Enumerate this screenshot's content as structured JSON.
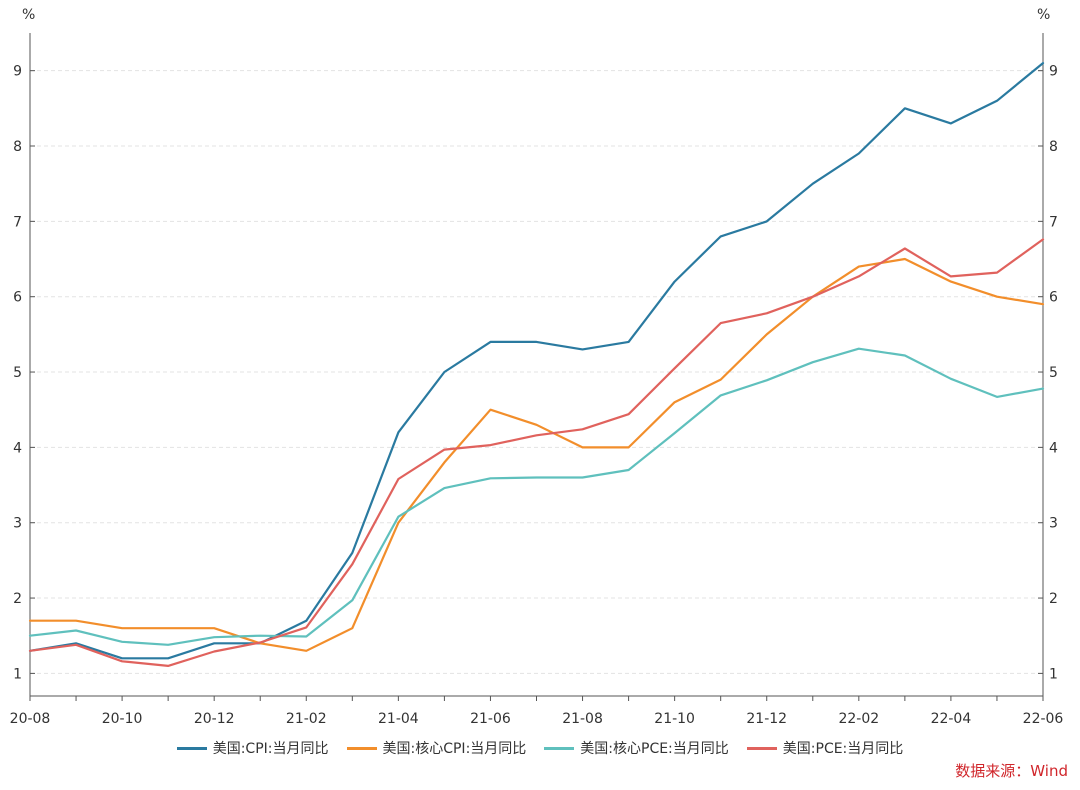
{
  "chart_data": {
    "type": "line",
    "y_unit_left": "%",
    "y_unit_right": "%",
    "x": [
      "20-08",
      "20-09",
      "20-10",
      "20-11",
      "20-12",
      "21-01",
      "21-02",
      "21-03",
      "21-04",
      "21-05",
      "21-06",
      "21-07",
      "21-08",
      "21-09",
      "21-10",
      "21-11",
      "21-12",
      "22-01",
      "22-02",
      "22-03",
      "22-04",
      "22-05",
      "22-06"
    ],
    "x_tick_labels": [
      "20-08",
      "20-10",
      "20-12",
      "21-02",
      "21-04",
      "21-06",
      "21-08",
      "21-10",
      "21-12",
      "22-02",
      "22-04",
      "22-06"
    ],
    "y_ticks": [
      1,
      2,
      3,
      4,
      5,
      6,
      7,
      8,
      9
    ],
    "ylim": [
      0.7,
      9.5
    ],
    "grid": true,
    "legend_position": "bottom",
    "series": [
      {
        "name": "美国:CPI:当月同比",
        "color": "#2a7aa0",
        "values": [
          1.3,
          1.4,
          1.2,
          1.2,
          1.4,
          1.4,
          1.7,
          2.6,
          4.2,
          5.0,
          5.4,
          5.4,
          5.3,
          5.4,
          6.2,
          6.8,
          7.0,
          7.5,
          7.9,
          8.5,
          8.3,
          8.6,
          9.1
        ]
      },
      {
        "name": "美国:核心CPI:当月同比",
        "color": "#f28e2b",
        "values": [
          1.7,
          1.7,
          1.6,
          1.6,
          1.6,
          1.4,
          1.3,
          1.6,
          3.0,
          3.8,
          4.5,
          4.3,
          4.0,
          4.0,
          4.6,
          4.9,
          5.5,
          6.0,
          6.4,
          6.5,
          6.2,
          6.0,
          5.9
        ]
      },
      {
        "name": "美国:核心PCE:当月同比",
        "color": "#5fc0bd",
        "values": [
          1.5,
          1.57,
          1.42,
          1.38,
          1.48,
          1.5,
          1.49,
          1.97,
          3.08,
          3.46,
          3.59,
          3.6,
          3.6,
          3.7,
          4.19,
          4.69,
          4.89,
          5.13,
          5.31,
          5.22,
          4.91,
          4.67,
          4.78
        ]
      },
      {
        "name": "美国:PCE:当月同比",
        "color": "#e0625d",
        "values": [
          1.3,
          1.38,
          1.16,
          1.1,
          1.29,
          1.41,
          1.61,
          2.45,
          3.58,
          3.97,
          4.03,
          4.16,
          4.24,
          4.44,
          5.05,
          5.65,
          5.78,
          6.0,
          6.27,
          6.64,
          6.27,
          6.32,
          6.76
        ]
      }
    ]
  },
  "source_text": "数据来源：Wind"
}
